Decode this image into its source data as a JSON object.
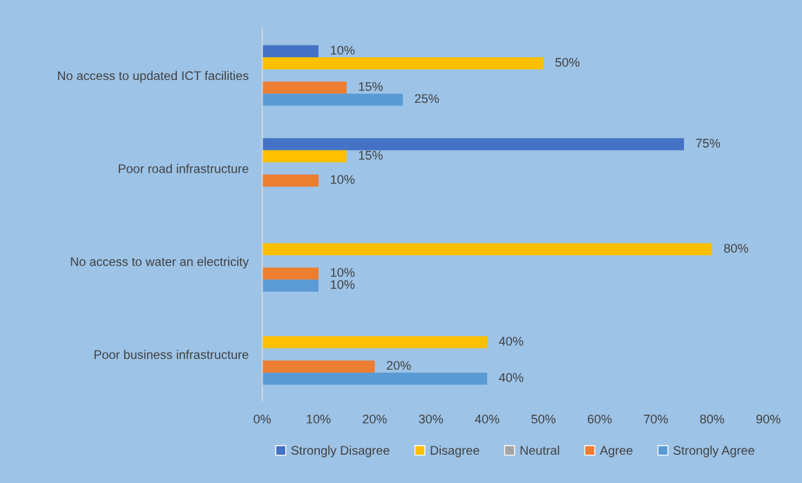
{
  "chart_data": {
    "type": "bar",
    "orientation": "horizontal",
    "categories": [
      "No access to updated ICT facilities",
      "Poor road infrastructure",
      "No access to water an electricity",
      "Poor business infrastructure"
    ],
    "series": [
      {
        "name": "Strongly Disagree",
        "color": "#4472c4",
        "values": [
          10,
          75,
          null,
          null
        ],
        "value_labels": [
          "10%",
          "75%",
          null,
          null
        ]
      },
      {
        "name": "Disagree",
        "color": "#ffc000",
        "values": [
          50,
          15,
          80,
          40
        ],
        "value_labels": [
          "50%",
          "15%",
          "80%",
          "40%"
        ]
      },
      {
        "name": "Neutral",
        "color": "#a5a5a5",
        "values": [
          null,
          null,
          null,
          null
        ],
        "value_labels": [
          null,
          null,
          null,
          null
        ]
      },
      {
        "name": "Agree",
        "color": "#ed7d31",
        "values": [
          15,
          10,
          10,
          20
        ],
        "value_labels": [
          "15%",
          "10%",
          "10%",
          "20%"
        ]
      },
      {
        "name": "Strongly Agree",
        "color": "#5b9bd5",
        "values": [
          25,
          null,
          10,
          40
        ],
        "value_labels": [
          "25%",
          null,
          "10%",
          "40%"
        ]
      }
    ],
    "xlim": [
      0,
      90
    ],
    "xticks": [
      {
        "value": 0,
        "label": "0%"
      },
      {
        "value": 10,
        "label": "10%"
      },
      {
        "value": 20,
        "label": "20%"
      },
      {
        "value": 30,
        "label": "30%"
      },
      {
        "value": 40,
        "label": "40%"
      },
      {
        "value": 50,
        "label": "50%"
      },
      {
        "value": 60,
        "label": "60%"
      },
      {
        "value": 70,
        "label": "70%"
      },
      {
        "value": 80,
        "label": "80%"
      },
      {
        "value": 90,
        "label": "90%"
      }
    ],
    "grid": false,
    "legend": "bottom"
  }
}
